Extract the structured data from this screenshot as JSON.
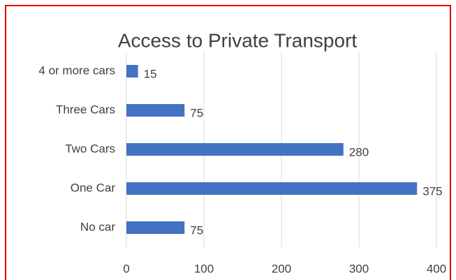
{
  "chart_data": {
    "type": "bar",
    "orientation": "horizontal",
    "title": "Access to Private Transport",
    "categories": [
      "4 or more cars",
      "Three Cars",
      "Two Cars",
      "One Car",
      "No car"
    ],
    "values": [
      15,
      75,
      280,
      375,
      75
    ],
    "color": "#4472c4",
    "xlim": [
      0,
      400
    ],
    "xticks": [
      0,
      100,
      200,
      300,
      400
    ],
    "grid": true,
    "data_labels": true
  }
}
